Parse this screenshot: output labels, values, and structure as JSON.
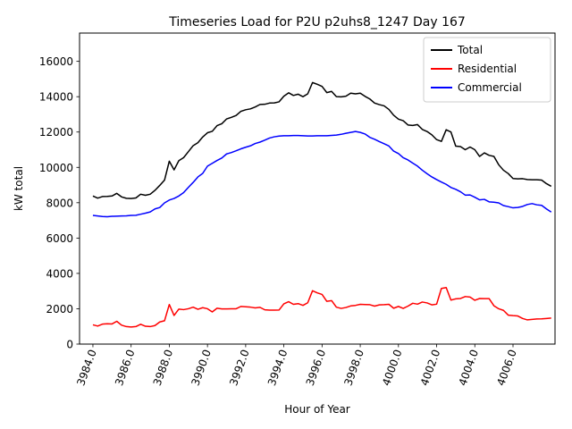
{
  "chart_data": {
    "type": "line",
    "title": "Timeseries Load for P2U p2uhs8_1247  Day 167",
    "xlabel": "Hour of Year",
    "ylabel": "kW total",
    "xlim": [
      3983.3,
      4008.2
    ],
    "ylim": [
      0,
      17600
    ],
    "x_ticks": [
      3984.0,
      3986.0,
      3988.0,
      3990.0,
      3992.0,
      3994.0,
      3996.0,
      3998.0,
      4000.0,
      4002.0,
      4004.0,
      4006.0
    ],
    "x_tick_labels": [
      "3984.0",
      "3986.0",
      "3988.0",
      "3990.0",
      "3992.0",
      "3994.0",
      "3996.0",
      "3998.0",
      "4000.0",
      "4002.0",
      "4004.0",
      "4006.0"
    ],
    "y_ticks": [
      0,
      2000,
      4000,
      6000,
      8000,
      10000,
      12000,
      14000,
      16000
    ],
    "y_tick_labels": [
      "0",
      "2000",
      "4000",
      "6000",
      "8000",
      "10000",
      "12000",
      "14000",
      "16000"
    ],
    "grid": false,
    "legend_position": "top-right",
    "x_start": 3984.0,
    "x_step": 0.25,
    "series": [
      {
        "name": "Total",
        "color": "#000000",
        "values": [
          8380,
          8260,
          8350,
          8360,
          8380,
          8530,
          8330,
          8250,
          8240,
          8270,
          8480,
          8420,
          8480,
          8700,
          8980,
          9280,
          10350,
          9860,
          10380,
          10550,
          10890,
          11230,
          11400,
          11720,
          11960,
          12040,
          12360,
          12470,
          12740,
          12830,
          12940,
          13170,
          13260,
          13310,
          13420,
          13560,
          13570,
          13640,
          13650,
          13710,
          14030,
          14220,
          14070,
          14140,
          14000,
          14160,
          14800,
          14700,
          14580,
          14230,
          14300,
          14000,
          13990,
          14030,
          14200,
          14160,
          14200,
          14020,
          13870,
          13640,
          13550,
          13480,
          13280,
          12950,
          12730,
          12640,
          12400,
          12370,
          12420,
          12150,
          12030,
          11840,
          11570,
          11470,
          12130,
          12000,
          11200,
          11180,
          11000,
          11150,
          11000,
          10620,
          10820,
          10680,
          10620,
          10150,
          9840,
          9650,
          9370,
          9350,
          9360,
          9310,
          9300,
          9300,
          9280,
          9080,
          8930
        ]
      },
      {
        "name": "Residential",
        "color": "#ff0000",
        "values": [
          1090,
          1020,
          1130,
          1150,
          1140,
          1290,
          1070,
          990,
          970,
          990,
          1120,
          1010,
          990,
          1050,
          1250,
          1320,
          2240,
          1620,
          1980,
          1950,
          2000,
          2090,
          1970,
          2060,
          2000,
          1820,
          2030,
          1990,
          1990,
          2000,
          2000,
          2130,
          2110,
          2090,
          2050,
          2080,
          1940,
          1920,
          1920,
          1930,
          2280,
          2400,
          2250,
          2290,
          2190,
          2340,
          3020,
          2900,
          2810,
          2420,
          2460,
          2090,
          2020,
          2070,
          2160,
          2190,
          2250,
          2240,
          2230,
          2150,
          2220,
          2230,
          2250,
          2030,
          2130,
          2020,
          2150,
          2310,
          2260,
          2380,
          2330,
          2220,
          2260,
          3150,
          3200,
          2490,
          2560,
          2580,
          2690,
          2660,
          2480,
          2580,
          2570,
          2570,
          2170,
          2000,
          1910,
          1640,
          1610,
          1590,
          1450,
          1370,
          1400,
          1420,
          1430,
          1450,
          1470
        ]
      },
      {
        "name": "Commercial",
        "color": "#0000ff",
        "values": [
          7280,
          7250,
          7220,
          7210,
          7230,
          7240,
          7250,
          7260,
          7280,
          7290,
          7350,
          7410,
          7480,
          7650,
          7730,
          7990,
          8150,
          8240,
          8380,
          8570,
          8870,
          9150,
          9460,
          9660,
          10070,
          10230,
          10390,
          10530,
          10760,
          10840,
          10940,
          11050,
          11140,
          11220,
          11350,
          11430,
          11540,
          11660,
          11730,
          11770,
          11790,
          11790,
          11800,
          11800,
          11790,
          11780,
          11780,
          11790,
          11790,
          11790,
          11810,
          11830,
          11870,
          11930,
          11980,
          12030,
          11980,
          11890,
          11700,
          11590,
          11460,
          11340,
          11210,
          10920,
          10780,
          10550,
          10420,
          10240,
          10070,
          9840,
          9640,
          9460,
          9310,
          9170,
          9040,
          8860,
          8760,
          8620,
          8430,
          8440,
          8310,
          8160,
          8190,
          8050,
          8030,
          7990,
          7840,
          7780,
          7710,
          7730,
          7790,
          7900,
          7950,
          7880,
          7850,
          7650,
          7470
        ]
      }
    ]
  }
}
